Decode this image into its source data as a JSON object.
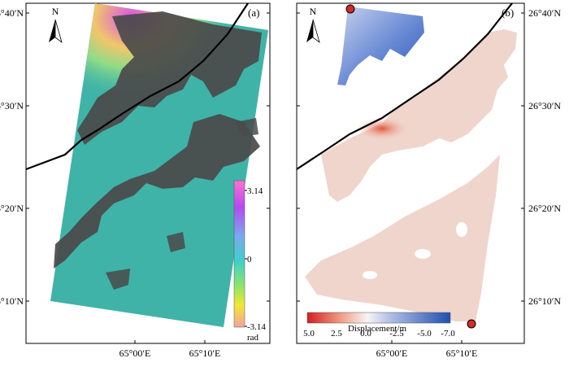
{
  "panels": {
    "a": {
      "label": "(a)",
      "north": "N",
      "colorbar": {
        "ticks": [
          "3.14",
          "0",
          "-3.14"
        ],
        "unit": "rad"
      }
    },
    "b": {
      "label": "(b)",
      "north": "N",
      "colorbar": {
        "title": "Displacement/m",
        "ticks": [
          "5.0",
          "2.5",
          "0.0",
          "-2.5",
          "-5.0",
          "-7.0"
        ]
      }
    }
  },
  "axes": {
    "lat_labels": [
      "26°40′N",
      "26°30′N",
      "26°20′N",
      "26°10′N"
    ],
    "lon_labels_a": [
      "65°00′E",
      "65°10′E"
    ],
    "lon_labels_b": [
      "65°00′E",
      "65°10′E"
    ]
  },
  "colors": {
    "phase_background": "#3fb3a8",
    "coherence_mask": "#4a4a4a",
    "displacement_positive": "#e8a38e",
    "displacement_negative": "#3a5fb0",
    "fault_line": "#000000",
    "marker": "#d62a2a"
  }
}
